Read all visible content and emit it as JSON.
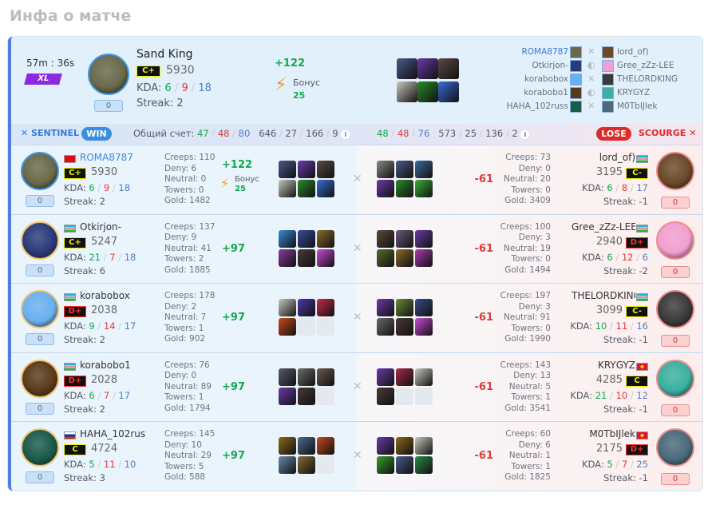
{
  "page_title": "Инфа о матче",
  "header": {
    "duration": "57m : 36s",
    "size_badge": "XL",
    "hero": {
      "name": "Sand King",
      "rank": "C+",
      "rating": "5930",
      "kda_label": "KDA:",
      "k": "6",
      "d": "9",
      "a": "18",
      "streak": "Streak: 2",
      "badge": "0",
      "avatar_color": "#6a6a4a"
    },
    "delta": "+122",
    "bonus_label": "Бонус",
    "bonus_value": "25",
    "items": [
      "#4a5a8a",
      "#6a3aa8",
      "#5a4a44",
      "#c8c8c0",
      "#2a8a2a",
      "#3a6ad8"
    ],
    "matchups": [
      {
        "left": "ROMA8787",
        "left_color": "#6a6a4a",
        "icon": "swords",
        "right": "lord_of)",
        "right_color": "#6a4a2a"
      },
      {
        "left": "Otkirjon-",
        "left_color": "#2a3a7a",
        "icon": "shield",
        "right": "Gree_zZz-LEE",
        "right_color": "#f0a0d0"
      },
      {
        "left": "korabobox",
        "left_color": "#6ab0f0",
        "icon": "swords",
        "right": "THELORDKING",
        "right_color": "#3a3a3a"
      },
      {
        "left": "korabobo1",
        "left_color": "#5a3a1a",
        "icon": "shield",
        "right": "KRYGYZ",
        "right_color": "#3ab0a0"
      },
      {
        "left": "HAHA_102russ",
        "left_color": "#1a5a4a",
        "icon": "swords",
        "right": "M0TbIJlek",
        "right_color": "#4a6a7a"
      }
    ]
  },
  "teams": {
    "left": {
      "name": "SENTINEL",
      "result": "WIN",
      "score_label": "Общий счет:",
      "k": "47",
      "d": "48",
      "a": "80",
      "s1": "646",
      "s2": "27",
      "s3": "166",
      "s4": "9"
    },
    "right": {
      "name": "SCOURGE",
      "result": "LOSE",
      "k": "48",
      "d": "48",
      "a": "76",
      "s1": "573",
      "s2": "25",
      "s3": "136",
      "s4": "2"
    }
  },
  "colors": {
    "accent": "#4d7fe0",
    "win": "#3a8ee0",
    "lose": "#dd2c2c",
    "green": "#12a94c",
    "red": "#e23a3a"
  },
  "players": [
    {
      "left": {
        "name": "ROMA8787",
        "flag": "tr",
        "rank": "C+",
        "rating": "5930",
        "k": "6",
        "d": "9",
        "a": "18",
        "streak": "Streak: 2",
        "badge": "0",
        "creeps": "Creeps: 110",
        "deny": "Deny: 6",
        "neutral": "Neutral: 0",
        "towers": "Towers: 0",
        "gold": "Gold: 1482",
        "delta": "+122",
        "bonus_label": "Бонус",
        "bonus_value": "25",
        "avatar_color": "#6a6a4a",
        "selected": true,
        "items": [
          "#4a5a8a",
          "#6a3aa8",
          "#5a4a44",
          "#c8c8c0",
          "#2a8a2a",
          "#3a6ad8"
        ]
      },
      "right": {
        "name": "lord_of)",
        "flag": "uz",
        "rank": "C-",
        "rating": "3195",
        "k": "6",
        "d": "8",
        "a": "17",
        "streak": "Streak: -1",
        "badge": "0",
        "creeps": "Creeps: 73",
        "deny": "Deny: 0",
        "neutral": "Neutral: 20",
        "towers": "Towers: 0",
        "gold": "Gold: 3409",
        "delta": "-61",
        "avatar_color": "#6a4a2a",
        "items": [
          "#888888",
          "#4a5a8a",
          "#3a6a9a",
          "#6a3aa8",
          "#2a8a2a",
          "#3ab03a"
        ]
      }
    },
    {
      "left": {
        "name": "Otkirjon-",
        "flag": "uz",
        "rank": "C+",
        "rating": "5247",
        "k": "21",
        "d": "7",
        "a": "18",
        "streak": "Streak: 6",
        "badge": "0",
        "creeps": "Creeps: 137",
        "deny": "Deny: 9",
        "neutral": "Neutral: 41",
        "towers": "Towers: 2",
        "gold": "Gold: 1885",
        "delta": "+97",
        "avatar_color": "#2a3a7a",
        "items": [
          "#3a8ad8",
          "#3a4a9a",
          "#8a6a2a",
          "#8a3a9a",
          "#4a3a3a",
          "#c84ad8"
        ]
      },
      "right": {
        "name": "Gree_zZz-LEE",
        "flag": "uz",
        "rank": "D+",
        "rating": "2940",
        "k": "6",
        "d": "12",
        "a": "6",
        "streak": "Streak: -2",
        "badge": "0",
        "creeps": "Creeps: 100",
        "deny": "Deny: 3",
        "neutral": "Neutral: 19",
        "towers": "Towers: 0",
        "gold": "Gold: 1494",
        "delta": "-61",
        "avatar_color": "#f0a0d0",
        "items": [
          "#5a4a3a",
          "#6a5a7a",
          "#6a3aa8",
          "#5a6a2a",
          "#8a6a2a",
          "#a83ab0"
        ]
      }
    },
    {
      "left": {
        "name": "korabobox",
        "flag": "uz",
        "rank": "D+",
        "rating": "2038",
        "k": "9",
        "d": "14",
        "a": "17",
        "streak": "Streak: 2",
        "badge": "0",
        "creeps": "Creeps: 178",
        "deny": "Deny: 2",
        "neutral": "Neutral: 7",
        "towers": "Towers: 1",
        "gold": "Gold: 902",
        "delta": "+97",
        "avatar_color": "#6ab0f0",
        "items": [
          "#c8c8c0",
          "#4a3aa8",
          "#c82a4a",
          "#c84a1a",
          null,
          null
        ]
      },
      "right": {
        "name": "THELORDKING",
        "flag": "uz",
        "rank": "C-",
        "rating": "3099",
        "k": "10",
        "d": "11",
        "a": "16",
        "streak": "Streak: -1",
        "badge": "0",
        "creeps": "Creeps: 197",
        "deny": "Deny: 3",
        "neutral": "Neutral: 91",
        "towers": "Towers: 0",
        "gold": "Gold: 1990",
        "delta": "-61",
        "avatar_color": "#3a3a3a",
        "items": [
          "#6a3aa8",
          "#6a8a3a",
          "#3a4a8a",
          "#6a6a6a",
          "#4a3a3a",
          "#c84ad8"
        ]
      }
    },
    {
      "left": {
        "name": "korabobo1",
        "flag": "uz",
        "rank": "D+",
        "rating": "2028",
        "k": "6",
        "d": "7",
        "a": "17",
        "streak": "Streak: 2",
        "badge": "0",
        "creeps": "Creeps: 76",
        "deny": "Deny: 0",
        "neutral": "Neutral: 89",
        "towers": "Towers: 1",
        "gold": "Gold: 1794",
        "delta": "+97",
        "avatar_color": "#5a3a1a",
        "items": [
          "#5a5a6a",
          "#6a6a6a",
          "#6a5a4a",
          "#6a3aa8",
          "#4a3a3a",
          null
        ]
      },
      "right": {
        "name": "KRYGYZ",
        "flag": "kg",
        "rank": "C",
        "rating": "4285",
        "k": "21",
        "d": "10",
        "a": "12",
        "streak": "Streak: -1",
        "badge": "0",
        "creeps": "Creeps: 143",
        "deny": "Deny: 13",
        "neutral": "Neutral: 5",
        "towers": "Towers: 1",
        "gold": "Gold: 3541",
        "delta": "-61",
        "avatar_color": "#3ab0a0",
        "items": [
          "#6a3aa8",
          "#a82a4a",
          "#c8c8c0",
          "#4a3a3a",
          null,
          null
        ]
      }
    },
    {
      "left": {
        "name": "HAHA_102rus",
        "flag": "ru",
        "rank": "C",
        "rating": "4724",
        "k": "5",
        "d": "11",
        "a": "10",
        "streak": "Streak: 3",
        "badge": "0",
        "creeps": "Creeps: 145",
        "deny": "Deny: 10",
        "neutral": "Neutral: 29",
        "towers": "Towers: 5",
        "gold": "Gold: 588",
        "delta": "+97",
        "avatar_color": "#1a5a4a",
        "items": [
          "#8a6a1a",
          "#4a6a8a",
          "#c84a1a",
          "#6a8aaa",
          "#8a6a3a",
          null
        ]
      },
      "right": {
        "name": "M0TbIJlek",
        "flag": "kg",
        "rank": "D+",
        "rating": "2175",
        "k": "5",
        "d": "7",
        "a": "25",
        "streak": "Streak: -1",
        "badge": "0",
        "creeps": "Creeps: 60",
        "deny": "Deny: 6",
        "neutral": "Neutral: 1",
        "towers": "Towers: 1",
        "gold": "Gold: 1825",
        "delta": "-61",
        "avatar_color": "#4a6a7a",
        "items": [
          "#6a3aa8",
          "#8a6a1a",
          "#c8c8c0",
          "#3a9a2a",
          "#4a5a8a",
          "#2a8a4a"
        ]
      }
    }
  ]
}
